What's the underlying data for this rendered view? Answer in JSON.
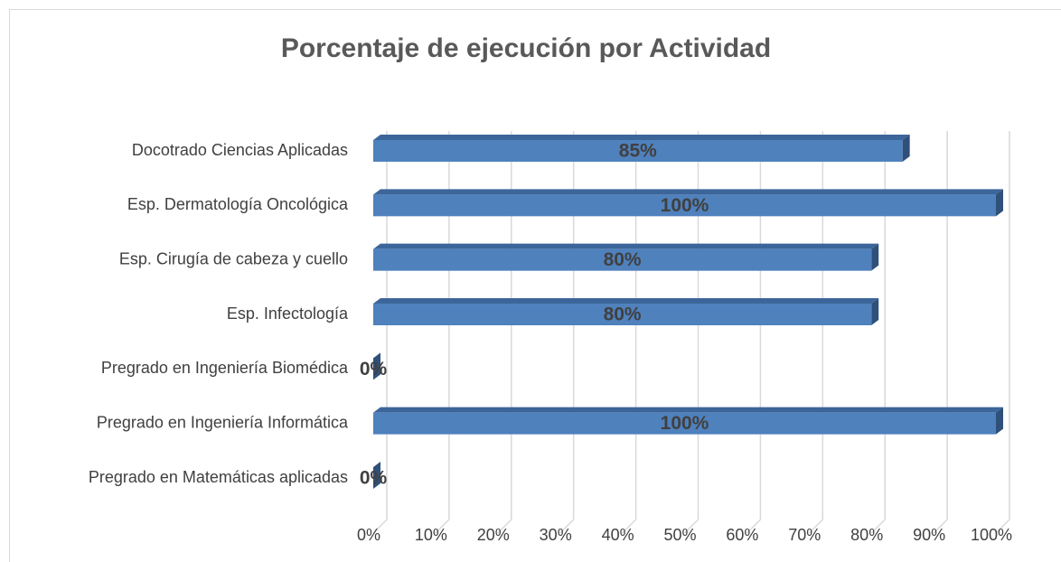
{
  "chart_data": {
    "type": "bar",
    "orientation": "horizontal",
    "title": "Porcentaje de ejecución por Actividad",
    "categories": [
      "Docotrado Ciencias Aplicadas",
      "Esp. Dermatología Oncológica",
      "Esp. Cirugía de cabeza y cuello",
      "Esp. Infectología",
      "Pregrado en Ingeniería Biomédica",
      "Pregrado en Ingeniería Informática",
      "Pregrado en Matemáticas aplicadas"
    ],
    "values": [
      85,
      100,
      80,
      80,
      0,
      100,
      0
    ],
    "value_labels": [
      "85%",
      "100%",
      "80%",
      "80%",
      "0%",
      "100%",
      "0%"
    ],
    "color": "#4f81bd",
    "xlim": [
      0,
      100
    ],
    "xticks": [
      {
        "value": 0,
        "label": "0%"
      },
      {
        "value": 10,
        "label": "10%"
      },
      {
        "value": 20,
        "label": "20%"
      },
      {
        "value": 30,
        "label": "30%"
      },
      {
        "value": 40,
        "label": "40%"
      },
      {
        "value": 50,
        "label": "50%"
      },
      {
        "value": 60,
        "label": "60%"
      },
      {
        "value": 70,
        "label": "70%"
      },
      {
        "value": 80,
        "label": "80%"
      },
      {
        "value": 90,
        "label": "90%"
      },
      {
        "value": 100,
        "label": "100%"
      }
    ],
    "grid": true
  }
}
